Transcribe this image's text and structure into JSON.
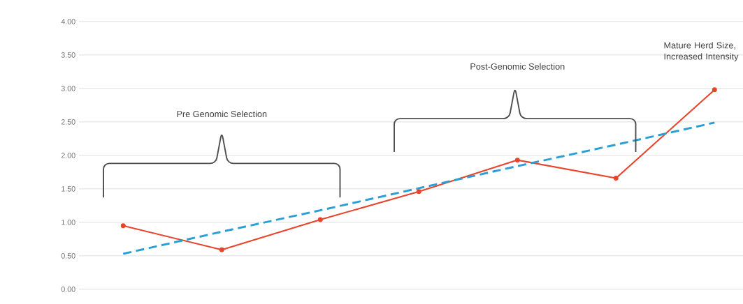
{
  "chart_data": {
    "type": "line",
    "categories": [
      null,
      null,
      null,
      null,
      null,
      null,
      null
    ],
    "series": [
      {
        "color": "#e8452c",
        "values": [
          0.95,
          0.59,
          1.04,
          1.46,
          1.93,
          1.66,
          2.98
        ],
        "marker": "circle",
        "line_style": "solid"
      },
      {
        "type": "line",
        "color": "#2a9fd6",
        "values": [
          0.53,
          0.86,
          1.18,
          1.51,
          1.84,
          2.16,
          2.49
        ],
        "marker": "none",
        "line_style": "dashed"
      }
    ],
    "ylim": [
      0,
      4
    ],
    "yticks": [
      {
        "value": 0,
        "label": "0.00"
      },
      {
        "value": 0.5,
        "label": "0.50"
      },
      {
        "value": 1,
        "label": "1.00"
      },
      {
        "value": 1.5,
        "label": "1.50"
      },
      {
        "value": 2,
        "label": "2.00"
      },
      {
        "value": 2.5,
        "label": "2.50"
      },
      {
        "value": 3,
        "label": "3.00"
      },
      {
        "value": 3.5,
        "label": "3.50"
      },
      {
        "value": 4,
        "label": "4.00"
      }
    ],
    "grid": "y",
    "annotations": [
      "Pre Genomic Selection",
      "Post-Genomic Selection",
      "Mature Herd Size, Increased Intensity"
    ]
  }
}
